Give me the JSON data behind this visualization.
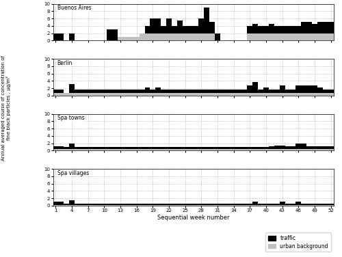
{
  "weeks": [
    1,
    2,
    3,
    4,
    5,
    6,
    7,
    8,
    9,
    10,
    11,
    12,
    13,
    14,
    15,
    16,
    17,
    18,
    19,
    20,
    21,
    22,
    23,
    24,
    25,
    26,
    27,
    28,
    29,
    30,
    31,
    32,
    33,
    34,
    35,
    36,
    37,
    38,
    39,
    40,
    41,
    42,
    43,
    44,
    45,
    46,
    47,
    48,
    49,
    50,
    51,
    52
  ],
  "ba_traffic": [
    2,
    2,
    0,
    2,
    0,
    0,
    0,
    0,
    0,
    0,
    3,
    3,
    0,
    0,
    0,
    0,
    0,
    2,
    4,
    4,
    2,
    4,
    2,
    3.5,
    2,
    2,
    2,
    4,
    7,
    3,
    2,
    0,
    0,
    0,
    0,
    0,
    2,
    2.5,
    2,
    2,
    2.5,
    2,
    2,
    2,
    2,
    2,
    3,
    3,
    2.5,
    3,
    3,
    3
  ],
  "ba_bg": [
    0,
    0,
    0,
    0,
    0,
    0,
    0,
    0,
    0,
    0,
    0,
    0,
    1,
    1,
    1,
    1,
    2,
    2,
    2,
    2,
    2,
    2,
    2,
    2,
    2,
    2,
    2,
    2,
    2,
    2,
    0,
    0,
    0,
    0,
    0,
    0,
    2,
    2,
    2,
    2,
    2,
    2,
    2,
    2,
    2,
    2,
    2,
    2,
    2,
    2,
    2,
    2
  ],
  "berlin_traffic": [
    1,
    1,
    0,
    2.5,
    1,
    1,
    1,
    1,
    1,
    1,
    1,
    1,
    1,
    1,
    1,
    1,
    1,
    1.5,
    1,
    1.5,
    1,
    1,
    1,
    1,
    1,
    1,
    1,
    1,
    1,
    1,
    1,
    1,
    1,
    1,
    1,
    1,
    2,
    3,
    1,
    1.5,
    1,
    1,
    2,
    1,
    1,
    2,
    2,
    2,
    2,
    1.5,
    1,
    1
  ],
  "berlin_bg": [
    0.7,
    0.7,
    0.7,
    0.7,
    0.7,
    0.7,
    0.7,
    0.7,
    0.7,
    0.7,
    0.7,
    0.7,
    0.7,
    0.7,
    0.7,
    0.7,
    0.7,
    0.7,
    0.7,
    0.7,
    0.7,
    0.7,
    0.7,
    0.7,
    0.7,
    0.7,
    0.7,
    0.7,
    0.7,
    0.7,
    0.7,
    0.7,
    0.7,
    0.7,
    0.7,
    0.7,
    0.7,
    0.7,
    0.7,
    0.7,
    0.7,
    0.7,
    0.7,
    0.7,
    0.7,
    0.7,
    0.7,
    0.7,
    0.7,
    0.7,
    0.7,
    0.7
  ],
  "spa_towns_traffic": [
    0.8,
    0.8,
    0.5,
    1.5,
    0.5,
    0.5,
    0.5,
    0.5,
    0.5,
    0.5,
    0.5,
    0.5,
    0.5,
    0.5,
    0.5,
    0.5,
    0.5,
    0.5,
    0.5,
    0.5,
    0.5,
    0.5,
    0.5,
    0.5,
    0.5,
    0.5,
    0.5,
    0.5,
    0.5,
    0.5,
    0.5,
    0.5,
    0.5,
    0.5,
    0.5,
    0.5,
    0.5,
    0.5,
    0.5,
    0.5,
    0.7,
    1.0,
    1.0,
    0.8,
    0.8,
    1.5,
    1.5,
    0.8,
    0.8,
    0.8,
    0.8,
    0.8
  ],
  "spa_towns_bg": [
    0.4,
    0.4,
    0.4,
    0.4,
    0.4,
    0.4,
    0.4,
    0.4,
    0.4,
    0.4,
    0.4,
    0.4,
    0.4,
    0.4,
    0.4,
    0.4,
    0.4,
    0.4,
    0.4,
    0.4,
    0.4,
    0.4,
    0.4,
    0.4,
    0.4,
    0.4,
    0.4,
    0.4,
    0.4,
    0.4,
    0.4,
    0.4,
    0.4,
    0.4,
    0.4,
    0.4,
    0.4,
    0.4,
    0.4,
    0.4,
    0.4,
    0.4,
    0.4,
    0.4,
    0.4,
    0.4,
    0.4,
    0.4,
    0.4,
    0.4,
    0.4,
    0.4
  ],
  "spa_villages_traffic": [
    0.8,
    0.8,
    0.4,
    1.2,
    0.3,
    0.3,
    0.3,
    0.3,
    0.3,
    0.3,
    0.3,
    0.3,
    0.3,
    0.3,
    0.3,
    0.3,
    0.3,
    0.3,
    0.3,
    0.3,
    0.3,
    0.3,
    0.3,
    0.3,
    0.3,
    0.3,
    0.3,
    0.3,
    0.3,
    0.3,
    0.3,
    0.3,
    0.3,
    0.3,
    0.3,
    0.3,
    0.3,
    0.8,
    0.3,
    0.3,
    0.3,
    0.3,
    0.8,
    0.3,
    0.3,
    0.8,
    0.3,
    0.3,
    0.3,
    0.3,
    0.3,
    0.3
  ],
  "spa_villages_bg": [
    0.2,
    0.2,
    0.2,
    0.2,
    0.2,
    0.2,
    0.2,
    0.2,
    0.2,
    0.2,
    0.2,
    0.2,
    0.2,
    0.2,
    0.2,
    0.2,
    0.2,
    0.2,
    0.2,
    0.2,
    0.2,
    0.2,
    0.2,
    0.2,
    0.2,
    0.2,
    0.2,
    0.2,
    0.2,
    0.2,
    0.2,
    0.2,
    0.2,
    0.2,
    0.2,
    0.2,
    0.2,
    0.2,
    0.2,
    0.2,
    0.2,
    0.2,
    0.2,
    0.2,
    0.2,
    0.2,
    0.2,
    0.2,
    0.2,
    0.2,
    0.2,
    0.2
  ],
  "subplot_titles": [
    "Buenos Aires",
    "Berlin",
    "Spa towns",
    "Spa villages"
  ],
  "ylabel": "Annual averaged course of concentration of\nfine black particles , μg/m³",
  "xlabel": "Sequential week number",
  "ylim": [
    0,
    10
  ],
  "yticks": [
    0,
    2,
    4,
    6,
    8,
    10
  ],
  "xticks": [
    1,
    4,
    7,
    10,
    13,
    16,
    19,
    22,
    25,
    28,
    31,
    34,
    37,
    40,
    43,
    46,
    49,
    52
  ],
  "traffic_color": "#000000",
  "bg_color": "#c0c0c0",
  "grid_color": "#999999",
  "legend_labels": [
    "traffic",
    "urban background"
  ]
}
